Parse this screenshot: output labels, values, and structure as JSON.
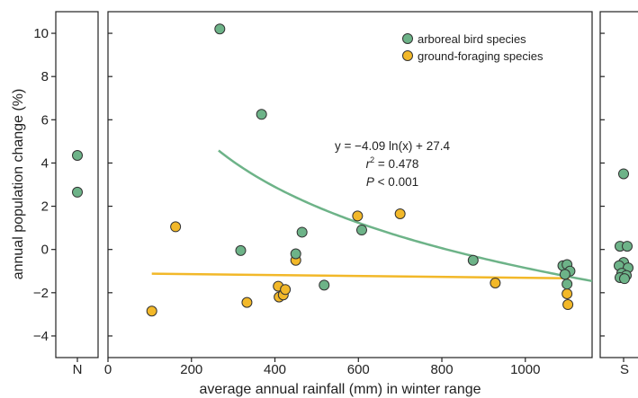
{
  "chart_data": {
    "type": "scatter",
    "xlabel": "average annual rainfall (mm) in winter range",
    "ylabel": "annual population change (%)",
    "xlim": [
      0,
      1160
    ],
    "ylim": [
      -5,
      11
    ],
    "xticks": [
      0,
      200,
      400,
      600,
      800,
      1000
    ],
    "yticks": [
      -4,
      -2,
      0,
      2,
      4,
      6,
      8,
      10
    ],
    "side_panels": {
      "left_label": "N",
      "right_label": "S"
    },
    "legend": {
      "placement": "top-right",
      "entries": [
        "arboreal bird species",
        "ground-foraging species"
      ]
    },
    "annotation": {
      "line1": "y = −4.09 ln(x) + 27.4",
      "line2_italic": "r",
      "line2_sup": "2",
      "line2_rest": " = 0.478",
      "line3_italic": "P",
      "line3_rest": " < 0.001"
    },
    "colors": {
      "arboreal": "#6db388",
      "ground": "#f2b829",
      "arboreal_fit": "#6db388",
      "ground_fit": "#f2b829",
      "outline": "#333333"
    },
    "series": [
      {
        "name": "arboreal bird species",
        "points": [
          [
            268,
            10.2
          ],
          [
            368,
            6.25
          ],
          [
            318,
            -0.05
          ],
          [
            450,
            -0.2
          ],
          [
            465,
            0.8
          ],
          [
            518,
            -1.65
          ],
          [
            608,
            0.9
          ],
          [
            875,
            -0.5
          ],
          [
            1090,
            -0.75
          ],
          [
            1100,
            -0.7
          ],
          [
            1107,
            -1.0
          ],
          [
            1095,
            -1.15
          ],
          [
            1100,
            -1.6
          ]
        ],
        "side_points_N": [
          4.35,
          2.65
        ],
        "side_points_S": [
          3.5,
          0.15,
          0.15,
          -0.6,
          -0.75,
          -0.85,
          -1.1,
          -1.2,
          -1.3,
          -1.35
        ]
      },
      {
        "name": "ground-foraging species",
        "points": [
          [
            105,
            -2.85
          ],
          [
            162,
            1.05
          ],
          [
            333,
            -2.45
          ],
          [
            408,
            -1.7
          ],
          [
            410,
            -2.2
          ],
          [
            420,
            -2.1
          ],
          [
            425,
            -1.85
          ],
          [
            450,
            -0.5
          ],
          [
            598,
            1.55
          ],
          [
            700,
            1.65
          ],
          [
            928,
            -1.55
          ],
          [
            1100,
            -2.05
          ],
          [
            1102,
            -2.55
          ]
        ]
      }
    ],
    "fits": [
      {
        "series": "arboreal bird species",
        "form": "y = -4.09 ln(x) + 27.4",
        "a": -4.09,
        "b": 27.4,
        "x_range": [
          265,
          1160
        ]
      },
      {
        "series": "ground-foraging species",
        "form": "linear",
        "x_range": [
          105,
          1105
        ],
        "y_range": [
          -1.12,
          -1.33
        ]
      }
    ]
  }
}
